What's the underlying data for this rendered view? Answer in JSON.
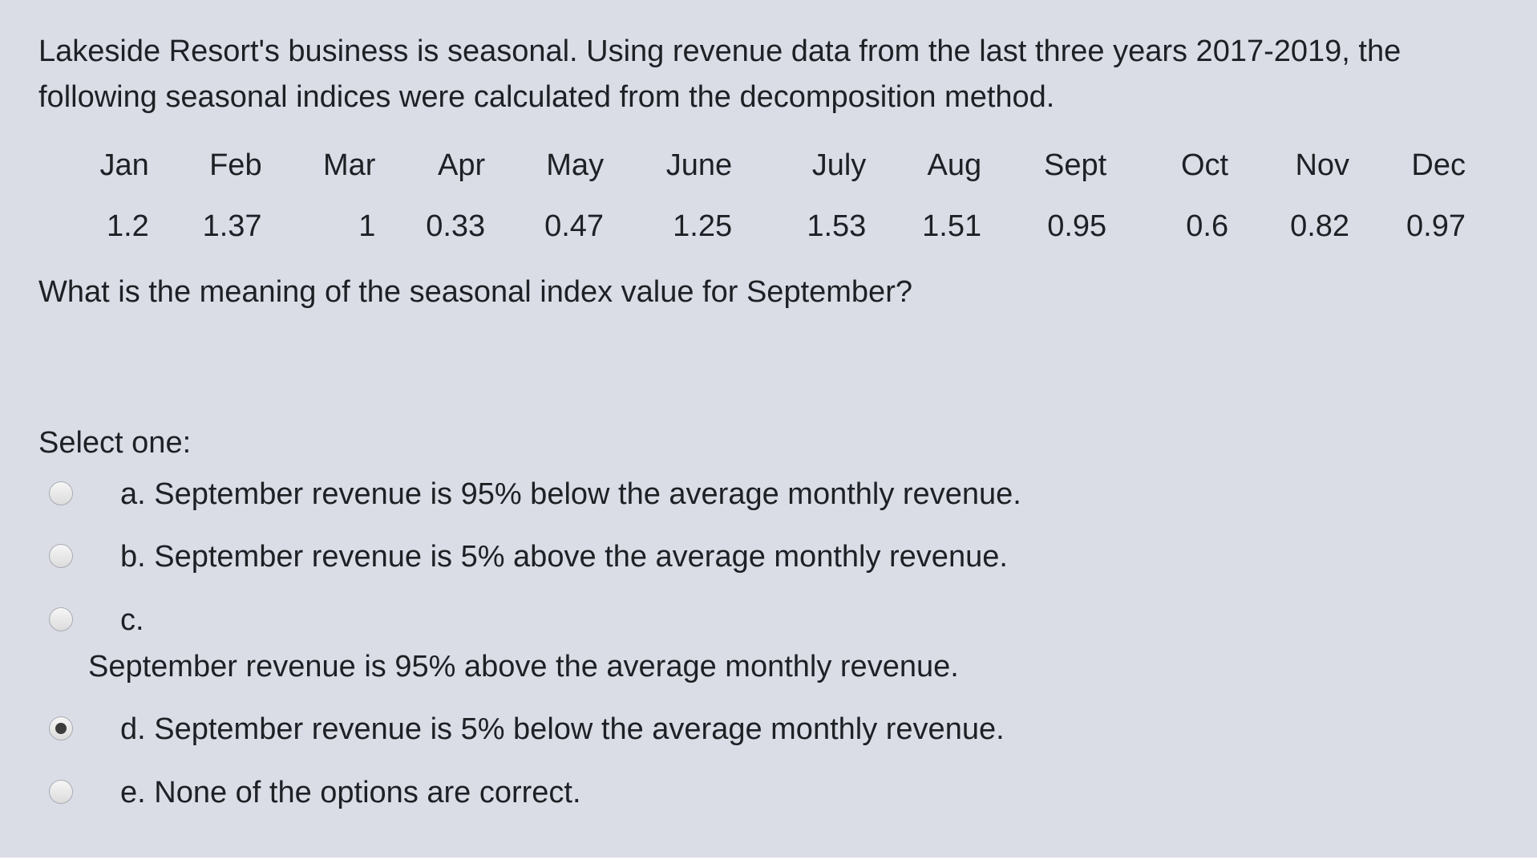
{
  "question": {
    "stem": "Lakeside Resort's business is seasonal. Using revenue data from the last three years 2017-2019, the following seasonal indices were calculated from the decomposition method.",
    "months": [
      "Jan",
      "Feb",
      "Mar",
      "Apr",
      "May",
      "June",
      "July",
      "Aug",
      "Sept",
      "Oct",
      "Nov",
      "Dec"
    ],
    "indices": [
      "1.2",
      "1.37",
      "1",
      "0.33",
      "0.47",
      "1.25",
      "1.53",
      "1.51",
      "0.95",
      "0.6",
      "0.82",
      "0.97"
    ],
    "prompt": "What is the meaning of the seasonal index value for September?"
  },
  "answers": {
    "select_label": "Select one:",
    "selected": "d",
    "options": [
      {
        "letter": "a",
        "label": "a. September revenue is 95% below the average monthly revenue."
      },
      {
        "letter": "b",
        "label": "b. September revenue is 5% above the average monthly revenue."
      },
      {
        "letter": "c",
        "label": "c.",
        "label_line2": "September revenue is 95% above the average monthly revenue."
      },
      {
        "letter": "d",
        "label": "d. September revenue is 5% below the average monthly revenue."
      },
      {
        "letter": "e",
        "label": "e. None of the options are correct."
      }
    ]
  }
}
